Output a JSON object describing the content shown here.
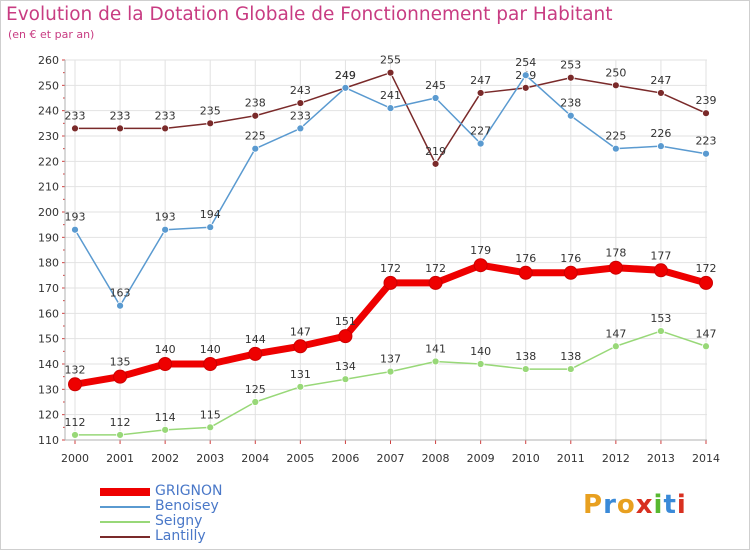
{
  "title": "Evolution de la Dotation Globale de Fonctionnement par Habitant",
  "subtitle": "(en € et par an)",
  "logo": {
    "text": "Proxiti",
    "colors": [
      "#e8a020",
      "#3a8ad8",
      "#e8a020",
      "#d83020",
      "#58b830",
      "#3a8ad8",
      "#d83020"
    ]
  },
  "chart_data": {
    "type": "line",
    "title": "Evolution de la Dotation Globale de Fonctionnement par Habitant",
    "subtitle": "(en € et par an)",
    "x": [
      "2000",
      "2001",
      "2002",
      "2003",
      "2004",
      "2005",
      "2006",
      "2007",
      "2008",
      "2009",
      "2010",
      "2011",
      "2012",
      "2013",
      "2014"
    ],
    "ylim": [
      110,
      260
    ],
    "yticks": [
      110,
      120,
      130,
      140,
      150,
      160,
      170,
      180,
      190,
      200,
      210,
      220,
      230,
      240,
      250,
      260
    ],
    "grid": true,
    "legend_position": "bottom-left",
    "series": [
      {
        "name": "Lantilly",
        "color": "#7a2a2a",
        "bold": false,
        "values": [
          233,
          233,
          233,
          235,
          238,
          243,
          249,
          255,
          219,
          247,
          249,
          253,
          250,
          247,
          239
        ]
      },
      {
        "name": "Benoisey",
        "color": "#5a9ad0",
        "bold": false,
        "values": [
          193,
          163,
          193,
          194,
          225,
          233,
          249,
          241,
          245,
          227,
          254,
          238,
          225,
          226,
          223
        ]
      },
      {
        "name": "Seigny",
        "color": "#98d878",
        "bold": false,
        "values": [
          112,
          112,
          114,
          115,
          125,
          131,
          134,
          137,
          141,
          140,
          138,
          138,
          147,
          153,
          147
        ]
      },
      {
        "name": "GRIGNON",
        "color": "#ee0000",
        "bold": true,
        "values": [
          132,
          135,
          140,
          140,
          144,
          147,
          151,
          172,
          172,
          179,
          176,
          176,
          178,
          177,
          172
        ]
      }
    ],
    "legend_order": [
      "GRIGNON",
      "Benoisey",
      "Seigny",
      "Lantilly"
    ]
  }
}
